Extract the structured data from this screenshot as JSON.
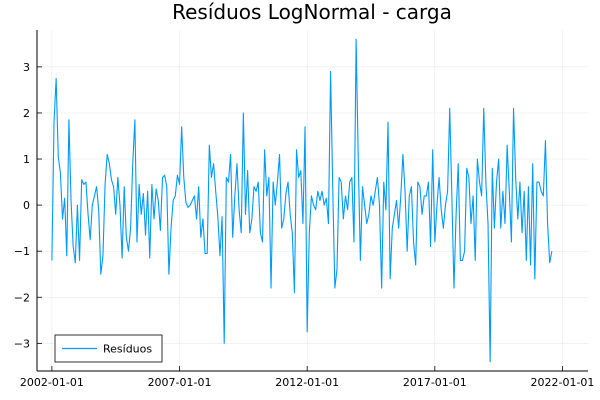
{
  "chart_data": {
    "type": "line",
    "title": "Resíduos LogNormal - carga",
    "xlabel": "",
    "ylabel": "",
    "x_ticks": [
      "2002-01-01",
      "2007-01-01",
      "2012-01-01",
      "2017-01-01",
      "2022-01-01"
    ],
    "x_range": [
      "2001-06-01",
      "2023-01-01"
    ],
    "y_ticks": [
      -3,
      -2,
      -1,
      0,
      1,
      2,
      3
    ],
    "ylim": [
      -3.6,
      3.8
    ],
    "grid": true,
    "legend_position": "bottom-left",
    "series": [
      {
        "name": "Resíduos",
        "color": "#009AF9",
        "x_start": "2002-01-01",
        "frequency": "monthly",
        "values": [
          -1.2,
          1.8,
          2.75,
          1.05,
          0.7,
          -0.3,
          0.15,
          -1.1,
          1.85,
          0.1,
          -0.9,
          -1.25,
          0.0,
          -1.2,
          0.55,
          0.45,
          0.5,
          -0.2,
          -0.75,
          0.0,
          0.2,
          0.4,
          -0.1,
          -1.5,
          -1.1,
          0.45,
          1.1,
          0.9,
          0.55,
          0.4,
          -0.2,
          0.6,
          0.0,
          -1.15,
          0.4,
          -0.7,
          -1.0,
          -0.5,
          0.9,
          1.85,
          -0.8,
          0.45,
          -0.2,
          0.25,
          -0.65,
          0.3,
          -1.15,
          0.45,
          -0.3,
          0.35,
          0.1,
          -0.55,
          0.6,
          0.65,
          0.4,
          -1.5,
          -0.5,
          0.1,
          0.2,
          0.65,
          0.45,
          1.7,
          0.6,
          0.05,
          -0.05,
          0.0,
          0.1,
          0.2,
          -0.3,
          0.4,
          -0.7,
          -0.3,
          -1.05,
          -1.05,
          1.3,
          0.6,
          0.9,
          0.3,
          -0.25,
          -1.1,
          -0.25,
          -3.0,
          0.6,
          0.5,
          1.1,
          -0.7,
          0.2,
          0.9,
          -0.1,
          -0.6,
          2.0,
          -0.2,
          0.75,
          -0.6,
          -0.3,
          0.4,
          0.3,
          0.5,
          -0.6,
          -0.8,
          1.2,
          0.2,
          0.6,
          -1.8,
          0.5,
          0.0,
          0.5,
          1.1,
          -0.5,
          -0.3,
          0.25,
          0.5,
          -0.2,
          -0.6,
          -1.9,
          1.2,
          0.6,
          0.75,
          -0.4,
          1.7,
          -2.75,
          -0.6,
          0.2,
          0.0,
          -0.1,
          0.3,
          0.1,
          0.3,
          0.0,
          0.15,
          -0.4,
          2.9,
          0.4,
          -1.8,
          -1.4,
          0.6,
          0.5,
          -0.3,
          0.2,
          -0.1,
          0.5,
          0.6,
          -0.8,
          3.6,
          1.0,
          -1.2,
          0.4,
          0.0,
          -0.4,
          -0.2,
          0.2,
          0.0,
          0.3,
          0.6,
          0.0,
          -1.8,
          0.5,
          -0.1,
          1.8,
          -1.6,
          -0.5,
          -0.2,
          0.1,
          -0.5,
          0.2,
          1.1,
          0.3,
          -1.0,
          0.2,
          0.4,
          -0.8,
          -1.3,
          0.5,
          0.4,
          -0.2,
          0.2,
          0.2,
          0.5,
          -0.9,
          1.2,
          -0.8,
          0.0,
          0.6,
          -0.1,
          -0.5,
          0.0,
          0.3,
          2.1,
          0.2,
          -1.8,
          -0.2,
          0.9,
          -1.2,
          -1.2,
          -1.0,
          0.8,
          0.6,
          -0.4,
          0.2,
          -1.2,
          1.0,
          0.5,
          0.2,
          2.1,
          0.5,
          -0.4,
          -3.4,
          0.8,
          -0.5,
          0.5,
          1.0,
          -0.5,
          0.3,
          -0.4,
          1.3,
          0.3,
          -0.8,
          2.1,
          0.6,
          -0.3,
          0.5,
          -0.6,
          0.3,
          -1.2,
          0.4,
          -1.3,
          0.9,
          -1.6,
          0.5,
          0.5,
          0.3,
          0.2,
          1.4,
          -0.4,
          -1.25,
          -1.0
        ]
      }
    ]
  }
}
